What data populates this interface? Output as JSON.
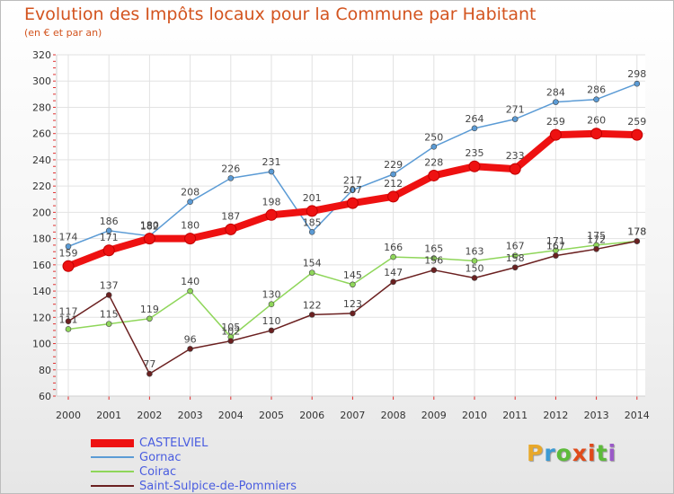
{
  "title": "Evolution des Impôts locaux pour la Commune par Habitant",
  "subtitle": "(en € et par an)",
  "brand": {
    "letters": [
      "P",
      "r",
      "o",
      "x",
      "i",
      "t",
      "i"
    ],
    "colors": [
      "#e8a82a",
      "#3b9ad3",
      "#5dbb3a",
      "#e04a1a",
      "#e04a1a",
      "#5dbb3a",
      "#9b5ac8"
    ]
  },
  "chart_data": {
    "type": "line",
    "title": "Evolution des Impôts locaux pour la Commune par Habitant",
    "subtitle": "(en € et par an)",
    "x": [
      "2000",
      "2001",
      "2002",
      "2003",
      "2004",
      "2005",
      "2006",
      "2007",
      "2008",
      "2009",
      "2010",
      "2011",
      "2012",
      "2013",
      "2014"
    ],
    "ylim": [
      60,
      320
    ],
    "yticks": [
      60,
      80,
      100,
      120,
      140,
      160,
      180,
      200,
      220,
      240,
      260,
      280,
      300,
      320
    ],
    "grid": true,
    "legend_position": "bottom-left",
    "series": [
      {
        "name": "Gornac",
        "color": "#5b9bd5",
        "values": [
          174,
          186,
          182,
          208,
          226,
          231,
          185,
          217,
          229,
          250,
          264,
          271,
          284,
          286,
          298
        ]
      },
      {
        "name": "Coirac",
        "color": "#8fd65a",
        "values": [
          111,
          115,
          119,
          140,
          105,
          130,
          154,
          145,
          166,
          165,
          163,
          167,
          171,
          175,
          178
        ]
      },
      {
        "name": "Saint-Sulpice-de-Pommiers",
        "color": "#6b2020",
        "values": [
          117,
          137,
          77,
          96,
          102,
          110,
          122,
          123,
          147,
          156,
          150,
          158,
          167,
          172,
          178
        ]
      },
      {
        "name": "CASTELVIEL",
        "color": "#ee1111",
        "values": [
          159,
          171,
          180,
          180,
          187,
          198,
          201,
          207,
          212,
          228,
          235,
          233,
          259,
          260,
          259
        ]
      }
    ],
    "legend_order": [
      "CASTELVIEL",
      "Gornac",
      "Coirac",
      "Saint-Sulpice-de-Pommiers"
    ]
  }
}
